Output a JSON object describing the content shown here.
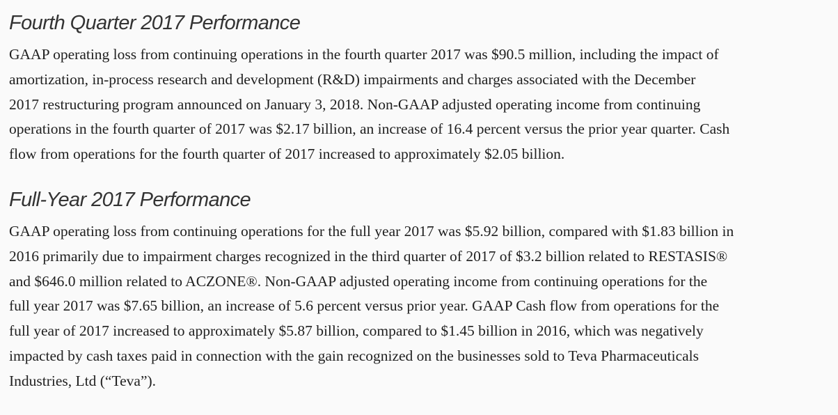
{
  "sections": [
    {
      "heading": "Fourth Quarter 2017 Performance",
      "lines": [
        "GAAP operating loss from continuing operations in the fourth quarter 2017 was $90.5 million, including the impact of",
        "amortization, in-process research and development (R&D) impairments and charges associated with the December",
        "2017 restructuring program announced on January 3, 2018. Non-GAAP adjusted operating income from continuing",
        "operations in the fourth quarter of 2017 was $2.17 billion, an increase of 16.4 percent versus the prior year quarter. Cash",
        "flow from operations for the fourth quarter of 2017 increased to approximately $2.05 billion."
      ]
    },
    {
      "heading": "Full-Year 2017 Performance",
      "lines": [
        "GAAP operating loss from continuing operations for the full year 2017 was $5.92 billion, compared with $1.83 billion in",
        "2016 primarily due to impairment charges recognized in the third quarter of 2017 of $3.2 billion related to RESTASIS®",
        "and $646.0 million related to ACZONE®. Non-GAAP adjusted operating income from continuing operations for the",
        "full year 2017 was $7.65 billion, an increase of 5.6 percent versus prior year. GAAP Cash flow from operations for the",
        "full year of 2017 increased to approximately $5.87 billion, compared to $1.45 billion in 2016, which was negatively",
        "impacted by cash taxes paid in connection with the gain recognized on the businesses sold to Teva Pharmaceuticals",
        "Industries, Ltd (“Teva”)."
      ]
    }
  ]
}
